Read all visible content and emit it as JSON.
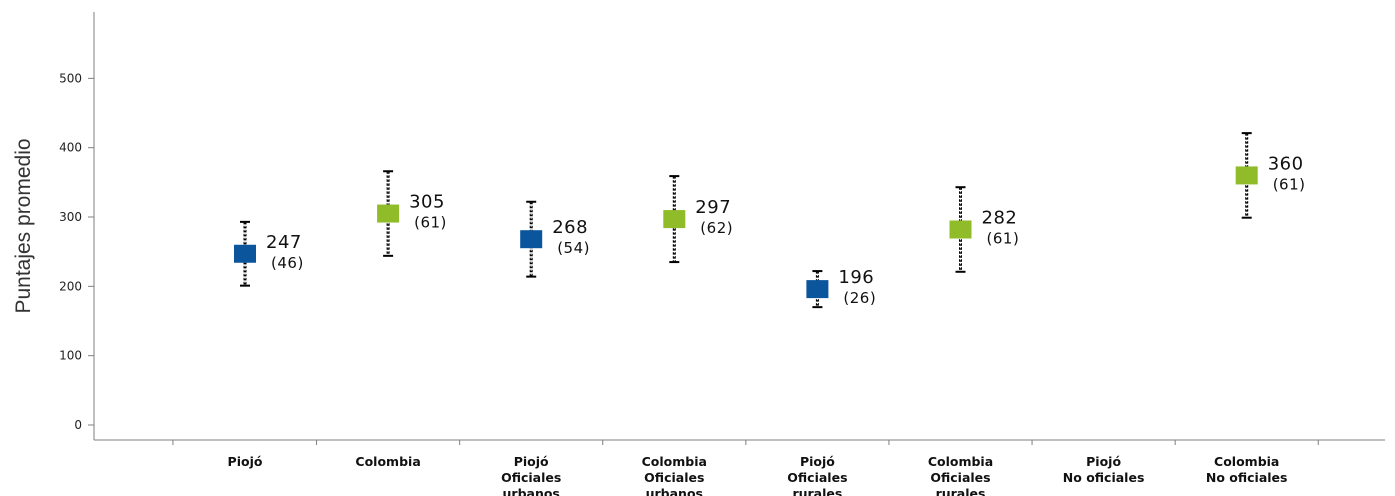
{
  "chart_data": {
    "type": "scatter",
    "title": "",
    "xlabel": "",
    "ylabel": "Puntajes promedio",
    "ylim": [
      0,
      560
    ],
    "yticks": [
      0,
      100,
      200,
      300,
      400,
      500
    ],
    "grid": false,
    "legend": "none",
    "colors": {
      "blue": "#0b559c",
      "green": "#8fbc28"
    },
    "points": [
      {
        "label": [
          "Piojó"
        ],
        "value": 247,
        "sd": 46,
        "sd_text": "(46)",
        "color": "#0b559c"
      },
      {
        "label": [
          "Colombia"
        ],
        "value": 305,
        "sd": 61,
        "sd_text": "(61)",
        "color": "#8fbc28"
      },
      {
        "label": [
          "Piojó",
          "Oficiales",
          "urbanos"
        ],
        "value": 268,
        "sd": 54,
        "sd_text": "(54)",
        "color": "#0b559c"
      },
      {
        "label": [
          "Colombia",
          "Oficiales",
          "urbanos"
        ],
        "value": 297,
        "sd": 62,
        "sd_text": "(62)",
        "color": "#8fbc28"
      },
      {
        "label": [
          "Piojó",
          "Oficiales",
          "rurales"
        ],
        "value": 196,
        "sd": 26,
        "sd_text": "(26)",
        "color": "#0b559c"
      },
      {
        "label": [
          "Colombia",
          "Oficiales",
          "rurales"
        ],
        "value": 282,
        "sd": 61,
        "sd_text": "(61)",
        "color": "#8fbc28"
      },
      {
        "label": [
          "Piojó",
          "No oficiales"
        ],
        "value": null,
        "sd": null,
        "sd_text": "",
        "color": "#0b559c"
      },
      {
        "label": [
          "Colombia",
          "No oficiales"
        ],
        "value": 360,
        "sd": 61,
        "sd_text": "(61)",
        "color": "#8fbc28"
      }
    ]
  }
}
